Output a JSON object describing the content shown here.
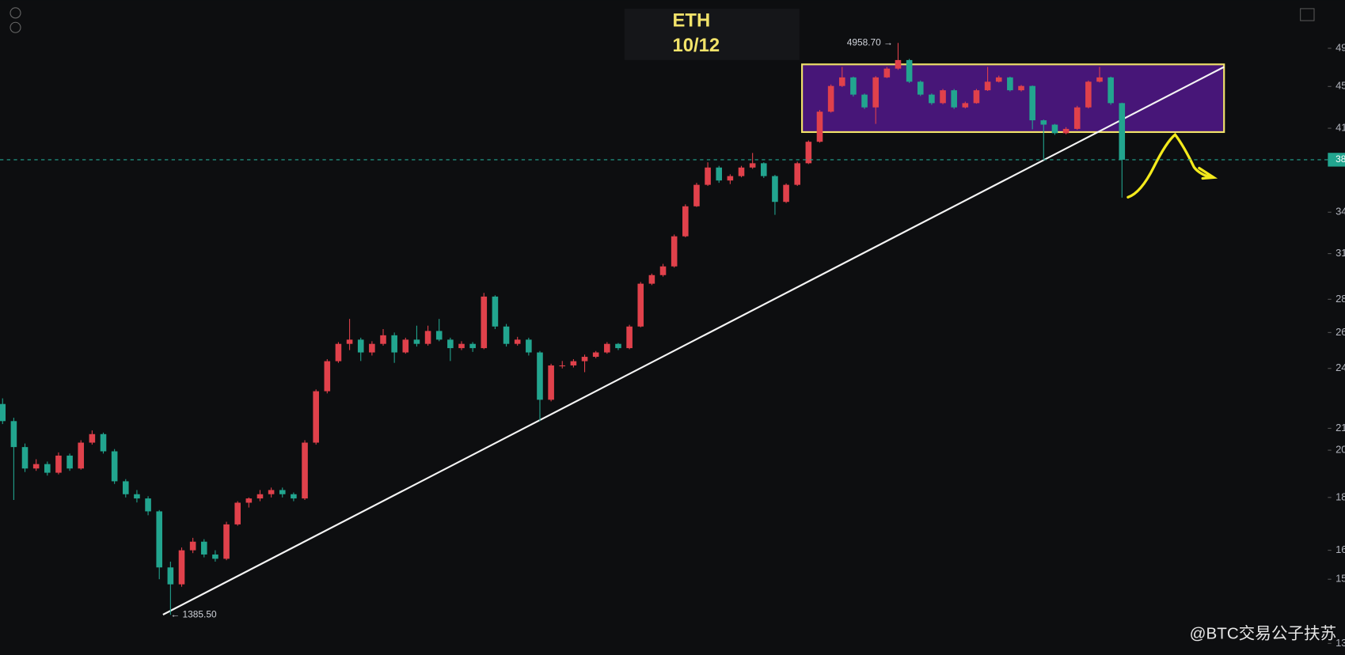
{
  "chart_data": {
    "type": "candlestick",
    "title": "ETH",
    "subtitle": "10/12",
    "log_scale": true,
    "grid": false,
    "up_color": "#e0414b",
    "down_color": "#22a58f",
    "ylim": [
      1289,
      5456
    ],
    "yticks": [
      {
        "value": 4900,
        "label": "49"
      },
      {
        "value": 4500,
        "label": "45"
      },
      {
        "value": 4100,
        "label": "41"
      },
      {
        "value": 3400,
        "label": "34"
      },
      {
        "value": 3100,
        "label": "31"
      },
      {
        "value": 2800,
        "label": "28"
      },
      {
        "value": 2600,
        "label": "26"
      },
      {
        "value": 2400,
        "label": "24"
      },
      {
        "value": 2100,
        "label": "21"
      },
      {
        "value": 2000,
        "label": "20"
      },
      {
        "value": 1800,
        "label": "18"
      },
      {
        "value": 1600,
        "label": "16"
      },
      {
        "value": 1500,
        "label": "15"
      },
      {
        "value": 1300,
        "label": "13"
      }
    ],
    "last_price": {
      "value": 3822,
      "label": "38"
    },
    "annotations": [
      {
        "text": "4958.70 →",
        "candle": 80,
        "price": 4958.7
      },
      {
        "text": "← 1385.50",
        "candle": 15,
        "price": 1385.5
      }
    ],
    "watermark": "@BTC交易公子扶苏",
    "candles": [
      [
        2217,
        2245,
        2120,
        2134
      ],
      [
        2134,
        2150,
        1790,
        2014
      ],
      [
        2014,
        2030,
        1905,
        1920
      ],
      [
        1920,
        1960,
        1910,
        1939
      ],
      [
        1939,
        1950,
        1890,
        1902
      ],
      [
        1902,
        1990,
        1895,
        1976
      ],
      [
        1976,
        1985,
        1910,
        1920
      ],
      [
        1920,
        2045,
        1915,
        2034
      ],
      [
        2034,
        2090,
        2025,
        2073
      ],
      [
        2073,
        2080,
        1985,
        1995
      ],
      [
        1995,
        2005,
        1855,
        1866
      ],
      [
        1866,
        1875,
        1800,
        1813
      ],
      [
        1813,
        1830,
        1780,
        1796
      ],
      [
        1796,
        1805,
        1730,
        1745
      ],
      [
        1745,
        1750,
        1500,
        1540
      ],
      [
        1540,
        1560,
        1385.5,
        1483
      ],
      [
        1483,
        1610,
        1475,
        1600
      ],
      [
        1600,
        1645,
        1590,
        1631
      ],
      [
        1631,
        1640,
        1575,
        1585
      ],
      [
        1585,
        1600,
        1560,
        1570
      ],
      [
        1570,
        1705,
        1565,
        1695
      ],
      [
        1695,
        1785,
        1690,
        1779
      ],
      [
        1779,
        1800,
        1760,
        1796
      ],
      [
        1796,
        1830,
        1785,
        1813
      ],
      [
        1813,
        1840,
        1800,
        1830
      ],
      [
        1830,
        1840,
        1800,
        1813
      ],
      [
        1813,
        1820,
        1785,
        1796
      ],
      [
        1796,
        2045,
        1790,
        2034
      ],
      [
        2034,
        2290,
        2025,
        2281
      ],
      [
        2281,
        2450,
        2270,
        2439
      ],
      [
        2439,
        2545,
        2430,
        2535
      ],
      [
        2535,
        2680,
        2500,
        2559
      ],
      [
        2559,
        2570,
        2440,
        2487
      ],
      [
        2487,
        2550,
        2470,
        2535
      ],
      [
        2535,
        2620,
        2525,
        2584
      ],
      [
        2584,
        2600,
        2430,
        2487
      ],
      [
        2487,
        2570,
        2480,
        2559
      ],
      [
        2559,
        2640,
        2520,
        2535
      ],
      [
        2535,
        2640,
        2525,
        2609
      ],
      [
        2609,
        2680,
        2550,
        2559
      ],
      [
        2559,
        2570,
        2440,
        2511
      ],
      [
        2511,
        2550,
        2500,
        2535
      ],
      [
        2535,
        2545,
        2490,
        2511
      ],
      [
        2511,
        2840,
        2505,
        2817
      ],
      [
        2817,
        2825,
        2620,
        2635
      ],
      [
        2635,
        2650,
        2520,
        2535
      ],
      [
        2535,
        2575,
        2525,
        2559
      ],
      [
        2559,
        2570,
        2470,
        2487
      ],
      [
        2487,
        2495,
        2134,
        2238
      ],
      [
        2238,
        2425,
        2230,
        2416
      ],
      [
        2416,
        2440,
        2400,
        2416
      ],
      [
        2416,
        2450,
        2405,
        2439
      ],
      [
        2439,
        2475,
        2380,
        2463
      ],
      [
        2463,
        2495,
        2455,
        2487
      ],
      [
        2487,
        2545,
        2480,
        2535
      ],
      [
        2535,
        2540,
        2500,
        2511
      ],
      [
        2511,
        2645,
        2505,
        2635
      ],
      [
        2635,
        2910,
        2630,
        2899
      ],
      [
        2899,
        2965,
        2890,
        2955
      ],
      [
        2955,
        3030,
        2945,
        3013
      ],
      [
        3013,
        3235,
        3005,
        3222
      ],
      [
        3222,
        3460,
        3215,
        3445
      ],
      [
        3445,
        3630,
        3440,
        3614
      ],
      [
        3614,
        3800,
        3605,
        3756
      ],
      [
        3756,
        3770,
        3630,
        3649
      ],
      [
        3649,
        3700,
        3620,
        3685
      ],
      [
        3685,
        3770,
        3675,
        3756
      ],
      [
        3756,
        3880,
        3745,
        3792
      ],
      [
        3792,
        3800,
        3670,
        3685
      ],
      [
        3685,
        3695,
        3380,
        3479
      ],
      [
        3479,
        3625,
        3470,
        3614
      ],
      [
        3614,
        3805,
        3605,
        3792
      ],
      [
        3792,
        3990,
        3785,
        3978
      ],
      [
        3978,
        4270,
        3970,
        4254
      ],
      [
        4254,
        4520,
        4245,
        4505
      ],
      [
        4505,
        4700,
        4495,
        4592
      ],
      [
        4592,
        4600,
        4400,
        4419
      ],
      [
        4419,
        4430,
        4280,
        4295
      ],
      [
        4295,
        4605,
        4140,
        4592
      ],
      [
        4592,
        4700,
        4585,
        4683
      ],
      [
        4683,
        4958.7,
        4670,
        4773
      ],
      [
        4773,
        4785,
        4535,
        4548
      ],
      [
        4548,
        4560,
        4405,
        4419
      ],
      [
        4419,
        4430,
        4320,
        4336
      ],
      [
        4336,
        4475,
        4325,
        4462
      ],
      [
        4462,
        4475,
        4280,
        4295
      ],
      [
        4295,
        4350,
        4285,
        4336
      ],
      [
        4336,
        4475,
        4330,
        4462
      ],
      [
        4462,
        4700,
        4455,
        4548
      ],
      [
        4548,
        4610,
        4540,
        4592
      ],
      [
        4592,
        4600,
        4450,
        4462
      ],
      [
        4462,
        4515,
        4450,
        4505
      ],
      [
        4505,
        4510,
        4090,
        4173
      ],
      [
        4173,
        4180,
        3830,
        4133
      ],
      [
        4133,
        4140,
        4040,
        4055
      ],
      [
        4055,
        4110,
        4045,
        4094
      ],
      [
        4094,
        4310,
        4085,
        4295
      ],
      [
        4295,
        4560,
        4285,
        4548
      ],
      [
        4548,
        4700,
        4540,
        4592
      ],
      [
        4592,
        4600,
        4320,
        4336
      ],
      [
        4336,
        4340,
        3512,
        3822
      ]
    ]
  }
}
